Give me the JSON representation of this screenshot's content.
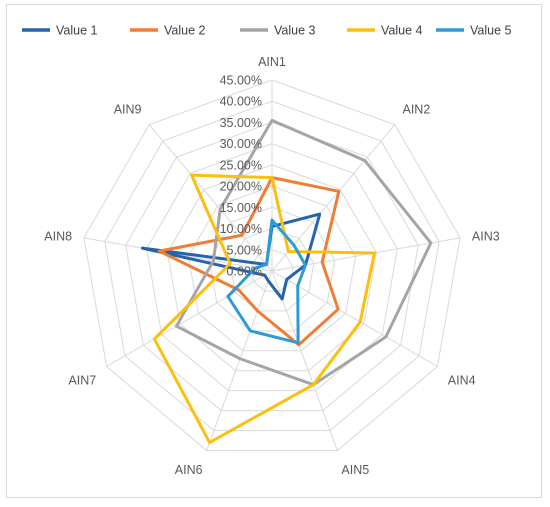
{
  "chart_data": {
    "type": "radar",
    "title": "",
    "categories": [
      "AIN1",
      "AIN2",
      "AIN3",
      "AIN4",
      "AIN5",
      "AIN6",
      "AIN7",
      "AIN8",
      "AIN9"
    ],
    "rlim": [
      0,
      45
    ],
    "tick_labels": [
      "0.00%",
      "5.00%",
      "10.00%",
      "15.00%",
      "20.00%",
      "25.00%",
      "30.00%",
      "35.00%",
      "40.00%",
      "45.00%"
    ],
    "grid": true,
    "legend_position": "top",
    "series": [
      {
        "name": "Value 1",
        "color": "#2464ad",
        "values": [
          10.5,
          17.5,
          8.0,
          4.0,
          7.0,
          2.5,
          2.0,
          31.0,
          2.0
        ]
      },
      {
        "name": "Value 2",
        "color": "#f07d34",
        "values": [
          22.0,
          24.5,
          12.0,
          18.0,
          18.5,
          10.0,
          9.0,
          27.0,
          11.0
        ]
      },
      {
        "name": "Value 3",
        "color": "#a5a5a5",
        "values": [
          35.5,
          34.0,
          38.0,
          31.0,
          28.5,
          22.0,
          26.0,
          14.0,
          19.0
        ]
      },
      {
        "name": "Value 4",
        "color": "#fcbf0e",
        "values": [
          22.0,
          6.0,
          24.5,
          24.0,
          28.5,
          43.0,
          32.0,
          10.0,
          29.5
        ]
      },
      {
        "name": "Value 5",
        "color": "#2e9ad6",
        "values": [
          12.0,
          8.0,
          8.0,
          7.0,
          18.0,
          15.0,
          12.0,
          4.0,
          2.0
        ]
      }
    ]
  }
}
